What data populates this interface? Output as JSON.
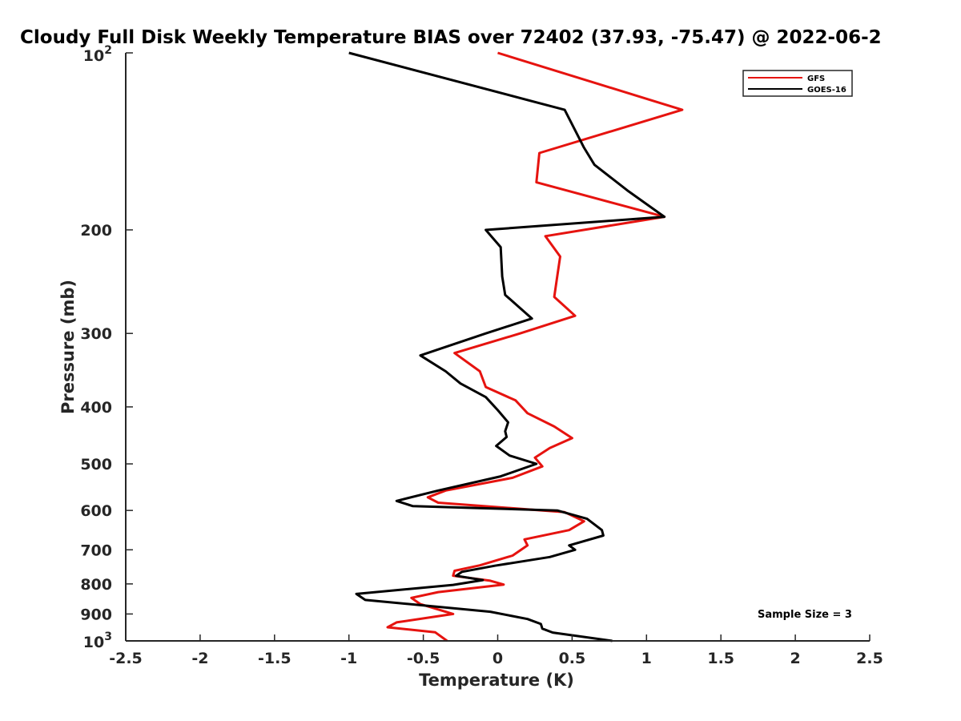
{
  "chart_data": {
    "type": "line",
    "title": "Cloudy Full Disk Weekly Temperature BIAS over 72402 (37.93, -75.47) @ 2022-06-2",
    "xlabel": "Temperature (K)",
    "ylabel": "Pressure (mb)",
    "xlim": [
      -2.5,
      2.5
    ],
    "ylim": [
      100,
      1000
    ],
    "y_scale": "log",
    "y_reversed": true,
    "grid": false,
    "x_ticks": [
      -2.5,
      -2,
      -1.5,
      -1,
      -0.5,
      0,
      0.5,
      1,
      1.5,
      2,
      2.5
    ],
    "x_tick_labels": [
      "-2.5",
      "-2",
      "-1.5",
      "-1",
      "-0.5",
      "0",
      "0.5",
      "1",
      "1.5",
      "2",
      "2.5"
    ],
    "y_ticks": [
      200,
      300,
      400,
      500,
      600,
      700,
      800,
      900
    ],
    "y_tick_labels": [
      "200",
      "300",
      "400",
      "500",
      "600",
      "700",
      "800",
      "900"
    ],
    "y_top_label": {
      "base": "10",
      "exp": "2"
    },
    "y_bottom_label": {
      "base": "10",
      "exp": "3"
    },
    "legend_position": "top-right",
    "annotation": "Sample Size = 3",
    "series": [
      {
        "name": "GFS",
        "color": "#e6130f",
        "points": [
          [
            0.0,
            100
          ],
          [
            1.24,
            125
          ],
          [
            0.28,
            148
          ],
          [
            0.26,
            166
          ],
          [
            1.12,
            190
          ],
          [
            0.32,
            205
          ],
          [
            0.42,
            222
          ],
          [
            0.4,
            240
          ],
          [
            0.38,
            260
          ],
          [
            0.52,
            280
          ],
          [
            0.15,
            300
          ],
          [
            -0.29,
            324
          ],
          [
            -0.12,
            348
          ],
          [
            -0.08,
            370
          ],
          [
            0.12,
            390
          ],
          [
            0.2,
            410
          ],
          [
            0.38,
            432
          ],
          [
            0.5,
            452
          ],
          [
            0.35,
            470
          ],
          [
            0.25,
            488
          ],
          [
            0.3,
            505
          ],
          [
            0.1,
            528
          ],
          [
            -0.35,
            555
          ],
          [
            -0.47,
            570
          ],
          [
            -0.4,
            582
          ],
          [
            0.45,
            604
          ],
          [
            0.58,
            626
          ],
          [
            0.48,
            648
          ],
          [
            0.18,
            672
          ],
          [
            0.2,
            688
          ],
          [
            0.1,
            716
          ],
          [
            -0.12,
            744
          ],
          [
            -0.29,
            760
          ],
          [
            -0.3,
            775
          ],
          [
            -0.05,
            790
          ],
          [
            0.04,
            802
          ],
          [
            -0.4,
            826
          ],
          [
            -0.58,
            845
          ],
          [
            -0.52,
            866
          ],
          [
            -0.3,
            900
          ],
          [
            -0.68,
            930
          ],
          [
            -0.74,
            948
          ],
          [
            -0.42,
            967
          ],
          [
            -0.34,
            1000
          ]
        ]
      },
      {
        "name": "GOES-16",
        "color": "#000000",
        "points": [
          [
            -1.0,
            100
          ],
          [
            0.45,
            125
          ],
          [
            0.58,
            145
          ],
          [
            0.65,
            155
          ],
          [
            0.88,
            172
          ],
          [
            1.12,
            190
          ],
          [
            -0.08,
            200
          ],
          [
            0.02,
            214
          ],
          [
            0.03,
            240
          ],
          [
            0.05,
            258
          ],
          [
            0.23,
            283
          ],
          [
            -0.08,
            300
          ],
          [
            -0.52,
            327
          ],
          [
            -0.35,
            348
          ],
          [
            -0.25,
            365
          ],
          [
            -0.08,
            385
          ],
          [
            0.0,
            405
          ],
          [
            0.07,
            425
          ],
          [
            0.05,
            440
          ],
          [
            0.06,
            450
          ],
          [
            -0.01,
            466
          ],
          [
            0.08,
            484
          ],
          [
            0.26,
            500
          ],
          [
            0.02,
            525
          ],
          [
            -0.4,
            555
          ],
          [
            -0.68,
            578
          ],
          [
            -0.57,
            590
          ],
          [
            0.4,
            600
          ],
          [
            0.6,
            620
          ],
          [
            0.7,
            648
          ],
          [
            0.71,
            662
          ],
          [
            0.48,
            688
          ],
          [
            0.52,
            700
          ],
          [
            0.35,
            720
          ],
          [
            -0.02,
            745
          ],
          [
            -0.24,
            763
          ],
          [
            -0.28,
            775
          ],
          [
            -0.1,
            788
          ],
          [
            -0.3,
            803
          ],
          [
            -0.95,
            832
          ],
          [
            -0.89,
            852
          ],
          [
            -0.05,
            892
          ],
          [
            0.2,
            918
          ],
          [
            0.29,
            936
          ],
          [
            0.3,
            953
          ],
          [
            0.37,
            968
          ],
          [
            0.77,
            1000
          ]
        ]
      }
    ]
  }
}
